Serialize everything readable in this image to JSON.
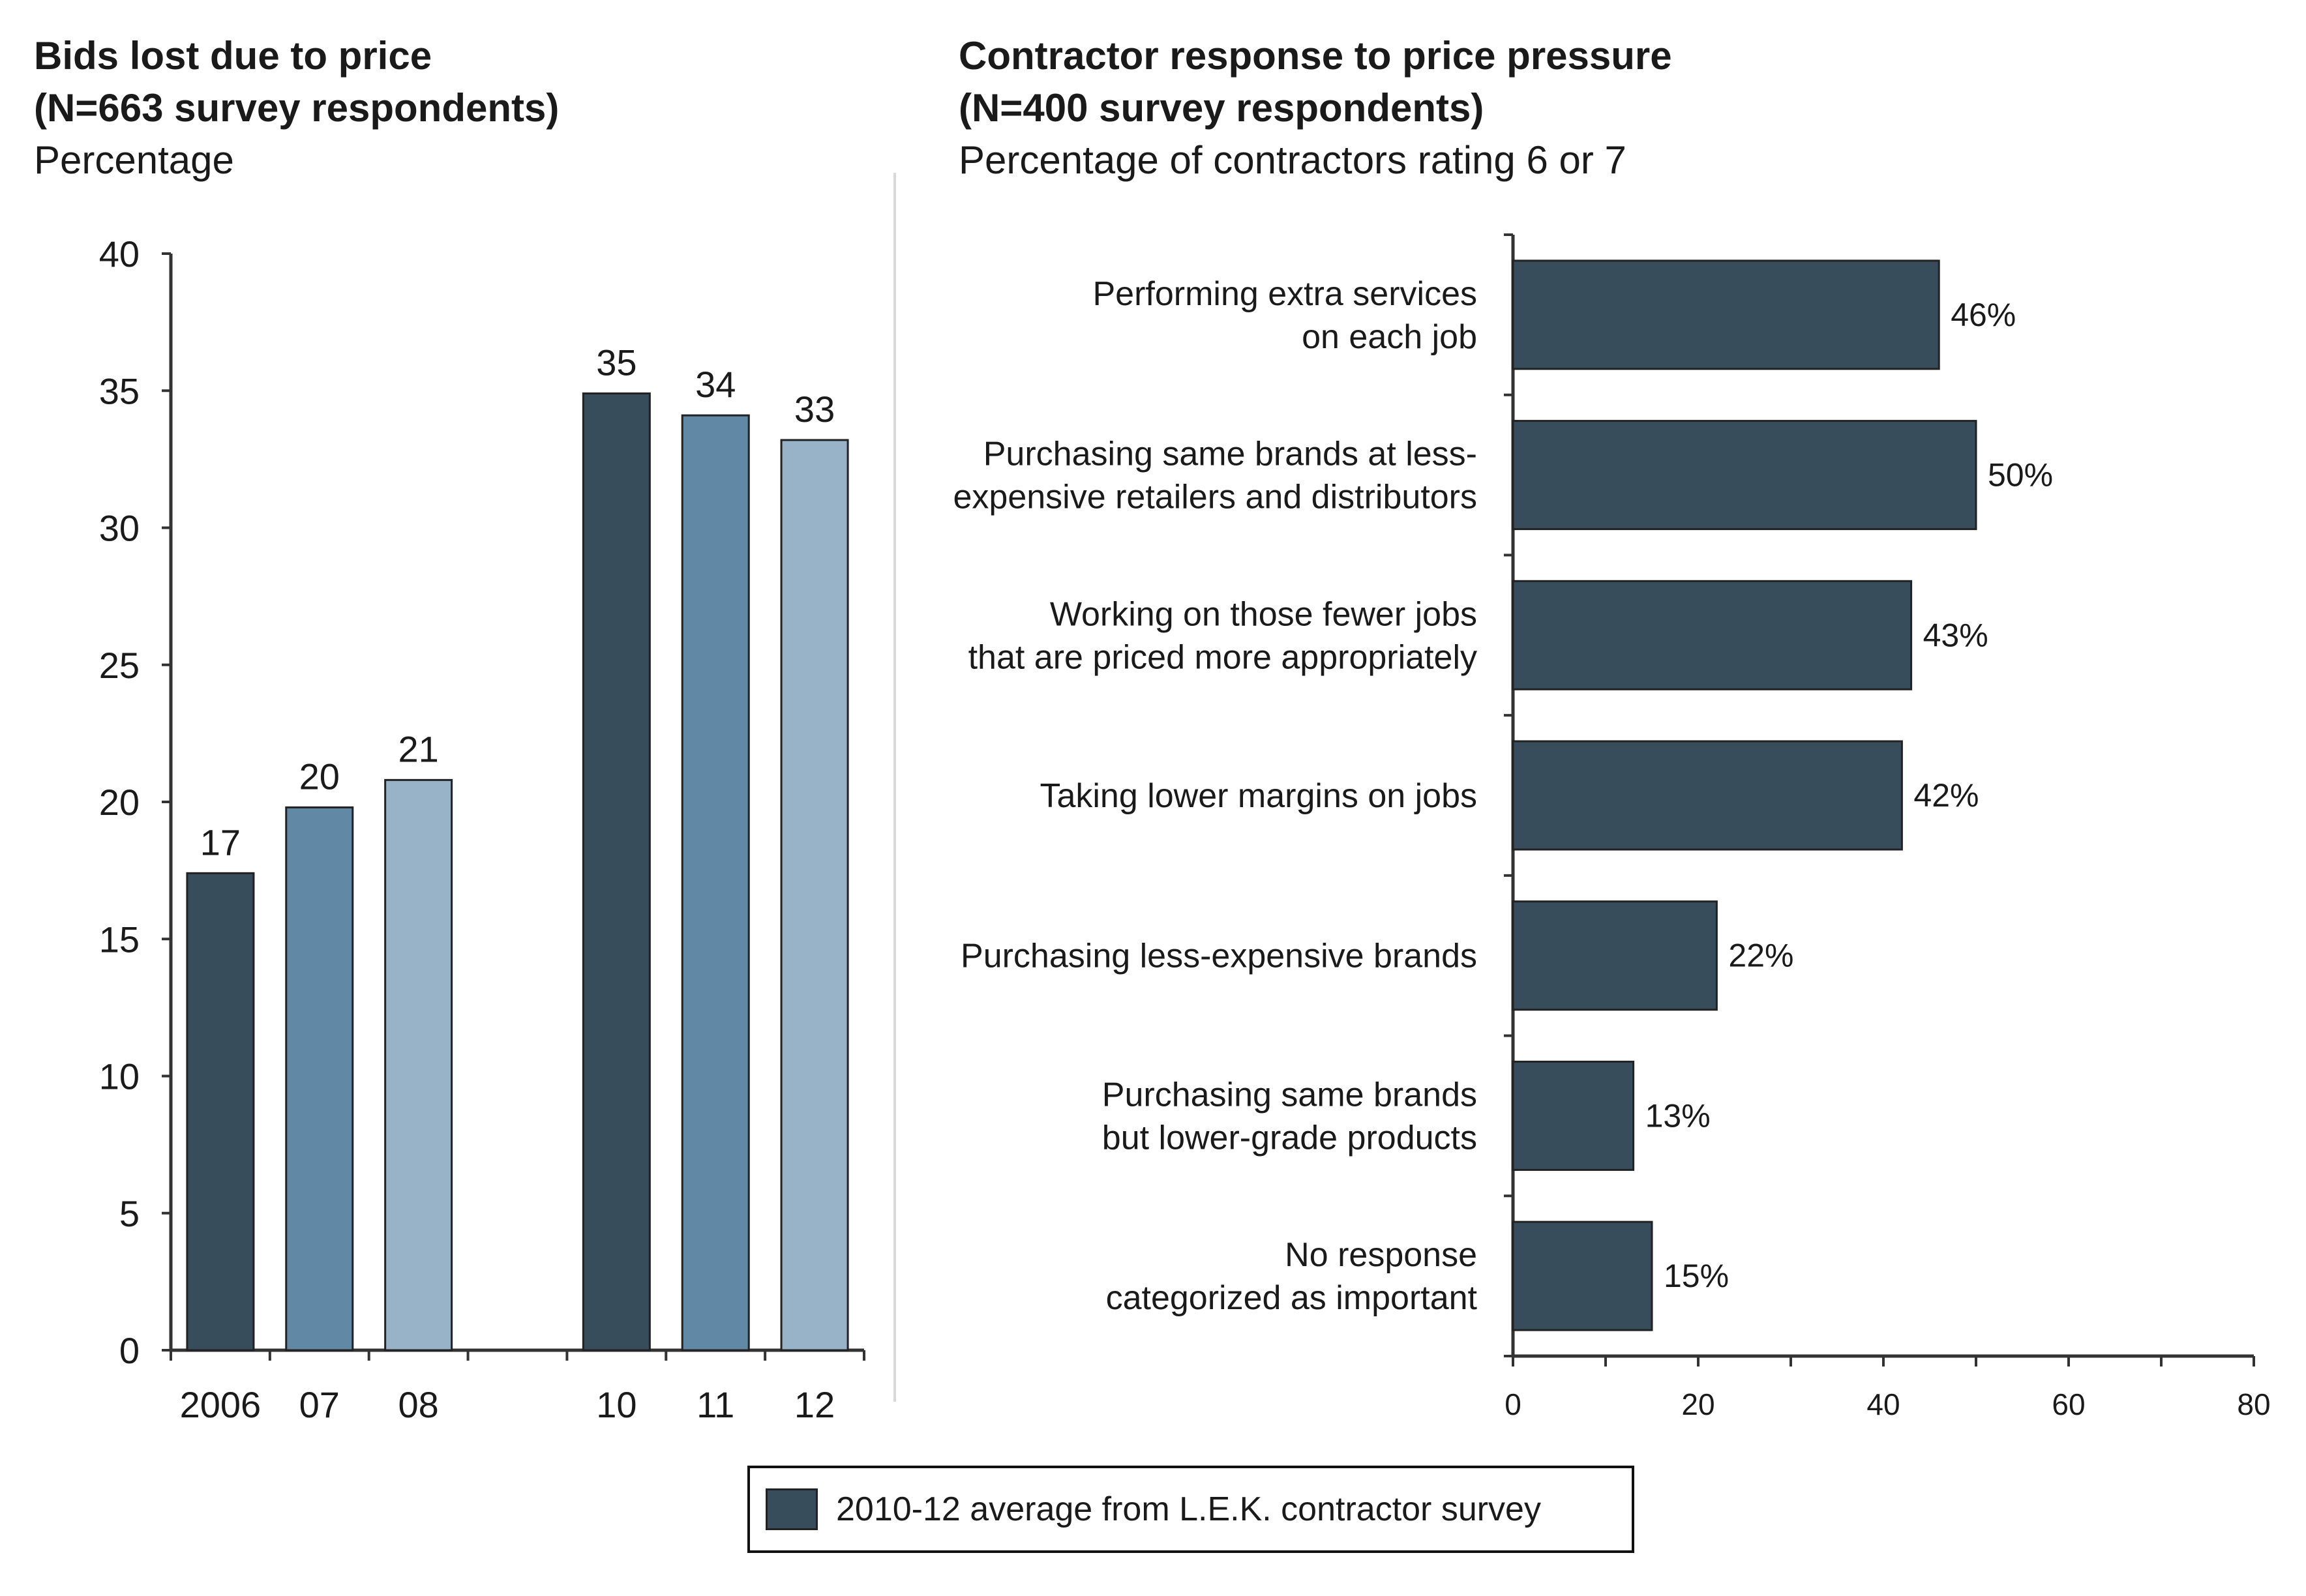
{
  "left_header": {
    "title_line1": "Bids lost due to price",
    "title_line2": "(N=663 survey respondents)",
    "subtitle": "Percentage"
  },
  "right_header": {
    "title_line1": "Contractor response to price pressure",
    "title_line2": "(N=400 survey respondents)",
    "subtitle": "Percentage of contractors rating 6 or 7"
  },
  "colors": {
    "dark": "#374d5c",
    "medium": "#6189a6",
    "light": "#98b2c7",
    "axis": "#333333"
  },
  "legend": {
    "label": "2010-12 average from L.E.K. contractor survey"
  },
  "chart_data": [
    {
      "type": "bar",
      "title": "Bids lost due to price (N=663 survey respondents)",
      "ylabel": "Percentage",
      "ylim": [
        0,
        40
      ],
      "yticks": [
        0,
        5,
        10,
        15,
        20,
        25,
        30,
        35,
        40
      ],
      "categories": [
        "2006",
        "07",
        "08",
        "10",
        "11",
        "12"
      ],
      "values": [
        17.4,
        19.8,
        20.8,
        34.9,
        34.1,
        33.2
      ],
      "data_labels": [
        "17",
        "20",
        "21",
        "35",
        "34",
        "33"
      ],
      "bar_colors": [
        "#374d5c",
        "#6189a6",
        "#98b2c7",
        "#374d5c",
        "#6189a6",
        "#98b2c7"
      ],
      "grid": false
    },
    {
      "type": "bar",
      "orientation": "horizontal",
      "title": "Contractor response to price pressure (N=400 survey respondents)",
      "subtitle": "Percentage of contractors rating 6 or 7",
      "xlim": [
        0,
        80
      ],
      "xticks": [
        0,
        20,
        40,
        60,
        80
      ],
      "categories": [
        [
          "Performing extra services",
          "on each job"
        ],
        [
          "Purchasing same brands at less-",
          "expensive retailers and distributors"
        ],
        [
          "Working on those fewer jobs",
          "that are priced more appropriately"
        ],
        [
          "Taking lower margins on jobs"
        ],
        [
          "Purchasing less-expensive brands"
        ],
        [
          "Purchasing same brands",
          "but lower-grade products"
        ],
        [
          "No response",
          "categorized as important"
        ]
      ],
      "values": [
        46,
        50,
        43,
        42,
        22,
        13,
        15
      ],
      "data_labels": [
        "46%",
        "50%",
        "43%",
        "42%",
        "22%",
        "13%",
        "15%"
      ],
      "bar_color": "#374d5c",
      "grid": false
    }
  ]
}
